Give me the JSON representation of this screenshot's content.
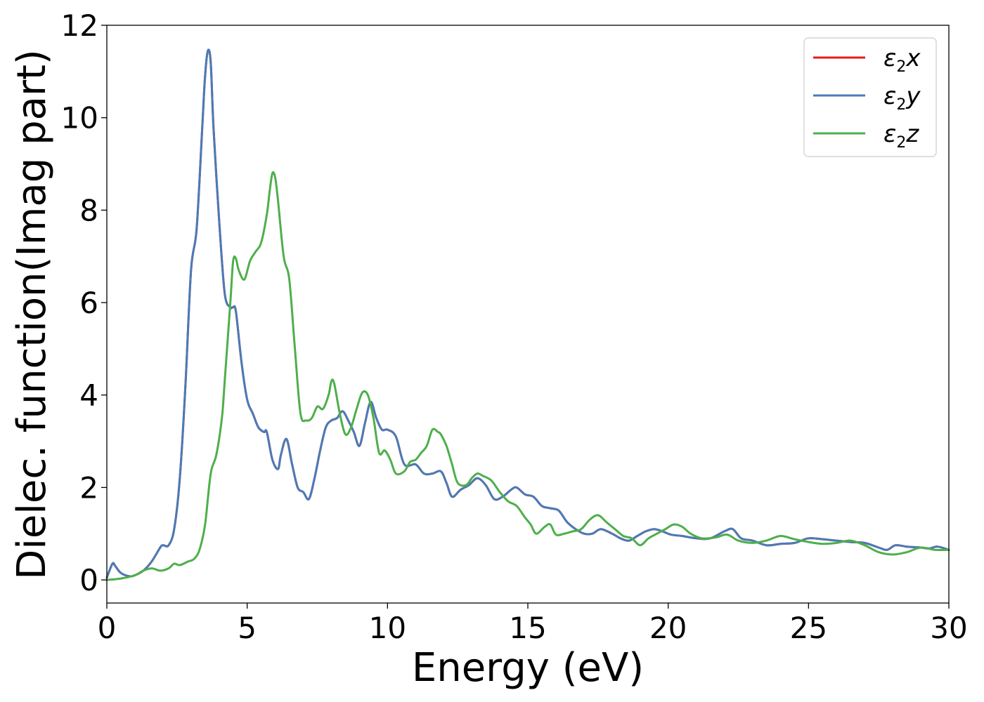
{
  "chart_data": {
    "type": "line",
    "title": "",
    "xlabel": "Energy (eV)",
    "ylabel": "Dielec. function(Imag part)",
    "xlim": [
      0,
      30
    ],
    "ylim": [
      -0.5,
      12
    ],
    "xticks": [
      0,
      5,
      10,
      15,
      20,
      25,
      30
    ],
    "yticks": [
      0,
      2,
      4,
      6,
      8,
      10,
      12
    ],
    "grid": false,
    "legend_position": "top-right",
    "series": [
      {
        "name": "ε2x",
        "legend_base": "ε",
        "legend_sub": "2",
        "legend_suffix": "x",
        "color": "#e41a1c",
        "x": [
          0,
          0.2,
          0.3,
          0.5,
          0.8,
          1.0,
          1.3,
          1.6,
          1.9,
          2.0,
          2.2,
          2.4,
          2.6,
          2.8,
          3.0,
          3.2,
          3.4,
          3.5,
          3.6,
          3.7,
          3.8,
          4.0,
          4.2,
          4.4,
          4.5,
          4.6,
          4.8,
          5.0,
          5.2,
          5.4,
          5.6,
          5.7,
          5.9,
          6.1,
          6.2,
          6.4,
          6.6,
          6.8,
          7.0,
          7.2,
          7.4,
          7.6,
          7.8,
          8.0,
          8.2,
          8.4,
          8.6,
          8.8,
          9.0,
          9.2,
          9.4,
          9.6,
          9.8,
          10.0,
          10.3,
          10.6,
          11.0,
          11.3,
          11.6,
          11.9,
          12.1,
          12.3,
          12.6,
          12.9,
          13.2,
          13.5,
          13.8,
          14.1,
          14.4,
          14.6,
          14.9,
          15.2,
          15.5,
          15.8,
          16.1,
          16.4,
          16.7,
          17.0,
          17.3,
          17.6,
          18.0,
          18.3,
          18.6,
          18.9,
          19.2,
          19.5,
          19.8,
          20.1,
          20.5,
          21.0,
          21.5,
          22.0,
          22.3,
          22.6,
          23.0,
          23.5,
          24.0,
          24.5,
          25.0,
          25.5,
          26.0,
          26.5,
          27.0,
          27.5,
          27.8,
          28.1,
          28.5,
          29.0,
          29.3,
          29.6,
          30.0
        ],
        "y": [
          0.05,
          0.35,
          0.3,
          0.15,
          0.08,
          0.1,
          0.2,
          0.4,
          0.7,
          0.75,
          0.75,
          1.1,
          2.2,
          4.2,
          6.7,
          7.6,
          9.8,
          10.9,
          11.45,
          11.2,
          9.8,
          7.8,
          6.2,
          5.9,
          5.9,
          5.8,
          4.7,
          3.9,
          3.6,
          3.3,
          3.2,
          3.2,
          2.6,
          2.4,
          2.7,
          3.05,
          2.5,
          2.0,
          1.9,
          1.75,
          2.2,
          2.8,
          3.3,
          3.45,
          3.5,
          3.65,
          3.45,
          3.2,
          2.9,
          3.4,
          3.85,
          3.5,
          3.25,
          3.25,
          3.1,
          2.5,
          2.5,
          2.3,
          2.3,
          2.35,
          2.1,
          1.8,
          1.95,
          2.05,
          2.2,
          2.05,
          1.75,
          1.8,
          1.95,
          2.0,
          1.85,
          1.8,
          1.6,
          1.55,
          1.5,
          1.25,
          1.1,
          1.0,
          1.0,
          1.1,
          1.0,
          0.9,
          0.85,
          0.95,
          1.05,
          1.1,
          1.05,
          0.98,
          0.95,
          0.9,
          0.9,
          1.05,
          1.1,
          0.9,
          0.85,
          0.75,
          0.78,
          0.8,
          0.9,
          0.88,
          0.85,
          0.82,
          0.8,
          0.7,
          0.65,
          0.75,
          0.72,
          0.7,
          0.68,
          0.72,
          0.65
        ]
      },
      {
        "name": "ε2y",
        "legend_base": "ε",
        "legend_sub": "2",
        "legend_suffix": "y",
        "color": "#4a7bb7",
        "x": [
          0,
          0.2,
          0.3,
          0.5,
          0.8,
          1.0,
          1.3,
          1.6,
          1.9,
          2.0,
          2.2,
          2.4,
          2.6,
          2.8,
          3.0,
          3.2,
          3.4,
          3.5,
          3.6,
          3.7,
          3.8,
          4.0,
          4.2,
          4.4,
          4.5,
          4.6,
          4.8,
          5.0,
          5.2,
          5.4,
          5.6,
          5.7,
          5.9,
          6.1,
          6.2,
          6.4,
          6.6,
          6.8,
          7.0,
          7.2,
          7.4,
          7.6,
          7.8,
          8.0,
          8.2,
          8.4,
          8.6,
          8.8,
          9.0,
          9.2,
          9.4,
          9.6,
          9.8,
          10.0,
          10.3,
          10.6,
          11.0,
          11.3,
          11.6,
          11.9,
          12.1,
          12.3,
          12.6,
          12.9,
          13.2,
          13.5,
          13.8,
          14.1,
          14.4,
          14.6,
          14.9,
          15.2,
          15.5,
          15.8,
          16.1,
          16.4,
          16.7,
          17.0,
          17.3,
          17.6,
          18.0,
          18.3,
          18.6,
          18.9,
          19.2,
          19.5,
          19.8,
          20.1,
          20.5,
          21.0,
          21.5,
          22.0,
          22.3,
          22.6,
          23.0,
          23.5,
          24.0,
          24.5,
          25.0,
          25.5,
          26.0,
          26.5,
          27.0,
          27.5,
          27.8,
          28.1,
          28.5,
          29.0,
          29.3,
          29.6,
          30.0
        ],
        "y": [
          0.05,
          0.35,
          0.3,
          0.15,
          0.08,
          0.1,
          0.2,
          0.4,
          0.7,
          0.75,
          0.75,
          1.1,
          2.2,
          4.2,
          6.7,
          7.6,
          9.8,
          10.9,
          11.45,
          11.2,
          9.8,
          7.8,
          6.2,
          5.9,
          5.9,
          5.8,
          4.7,
          3.9,
          3.6,
          3.3,
          3.2,
          3.2,
          2.6,
          2.4,
          2.7,
          3.05,
          2.5,
          2.0,
          1.9,
          1.75,
          2.2,
          2.8,
          3.3,
          3.45,
          3.5,
          3.65,
          3.45,
          3.2,
          2.9,
          3.4,
          3.85,
          3.5,
          3.25,
          3.25,
          3.1,
          2.5,
          2.5,
          2.3,
          2.3,
          2.35,
          2.1,
          1.8,
          1.95,
          2.05,
          2.2,
          2.05,
          1.75,
          1.8,
          1.95,
          2.0,
          1.85,
          1.8,
          1.6,
          1.55,
          1.5,
          1.25,
          1.1,
          1.0,
          1.0,
          1.1,
          1.0,
          0.9,
          0.85,
          0.95,
          1.05,
          1.1,
          1.05,
          0.98,
          0.95,
          0.9,
          0.9,
          1.05,
          1.1,
          0.9,
          0.85,
          0.75,
          0.78,
          0.8,
          0.9,
          0.88,
          0.85,
          0.82,
          0.8,
          0.7,
          0.65,
          0.75,
          0.72,
          0.7,
          0.68,
          0.72,
          0.65
        ]
      },
      {
        "name": "ε2z",
        "legend_base": "ε",
        "legend_sub": "2",
        "legend_suffix": "z",
        "color": "#4daf4a",
        "x": [
          0,
          0.5,
          1.0,
          1.3,
          1.6,
          1.9,
          2.2,
          2.4,
          2.6,
          2.9,
          3.1,
          3.3,
          3.5,
          3.7,
          3.9,
          4.1,
          4.2,
          4.4,
          4.5,
          4.6,
          4.7,
          4.9,
          5.1,
          5.3,
          5.5,
          5.7,
          5.8,
          5.9,
          6.0,
          6.1,
          6.3,
          6.5,
          6.7,
          6.9,
          7.1,
          7.3,
          7.5,
          7.7,
          7.9,
          8.0,
          8.1,
          8.3,
          8.5,
          8.7,
          8.9,
          9.1,
          9.3,
          9.5,
          9.7,
          9.9,
          10.1,
          10.3,
          10.6,
          10.8,
          11.0,
          11.2,
          11.4,
          11.6,
          11.8,
          11.9,
          12.1,
          12.3,
          12.5,
          12.8,
          13.0,
          13.2,
          13.4,
          13.7,
          14.0,
          14.3,
          14.6,
          14.9,
          15.1,
          15.3,
          15.6,
          15.8,
          16.0,
          16.3,
          16.6,
          16.9,
          17.2,
          17.5,
          17.8,
          18.1,
          18.4,
          18.7,
          19.0,
          19.3,
          19.6,
          19.9,
          20.2,
          20.5,
          20.8,
          21.2,
          21.7,
          22.1,
          22.5,
          23.0,
          23.5,
          24.0,
          24.5,
          25.0,
          25.5,
          26.0,
          26.5,
          27.0,
          27.5,
          28.0,
          28.5,
          29.0,
          29.5,
          30.0
        ],
        "y": [
          0.0,
          0.03,
          0.1,
          0.2,
          0.25,
          0.2,
          0.25,
          0.35,
          0.32,
          0.4,
          0.45,
          0.65,
          1.2,
          2.3,
          2.7,
          3.5,
          4.3,
          6.0,
          6.9,
          6.95,
          6.7,
          6.5,
          6.9,
          7.1,
          7.3,
          7.9,
          8.4,
          8.8,
          8.7,
          8.2,
          7.0,
          6.5,
          5.0,
          3.6,
          3.45,
          3.5,
          3.75,
          3.7,
          4.0,
          4.3,
          4.25,
          3.6,
          3.15,
          3.3,
          3.7,
          4.05,
          4.0,
          3.5,
          2.75,
          2.8,
          2.6,
          2.3,
          2.35,
          2.55,
          2.6,
          2.75,
          2.9,
          3.25,
          3.2,
          3.15,
          2.9,
          2.5,
          2.1,
          2.05,
          2.2,
          2.3,
          2.25,
          2.15,
          1.9,
          1.7,
          1.6,
          1.35,
          1.2,
          1.0,
          1.15,
          1.2,
          0.98,
          1.0,
          1.05,
          1.1,
          1.3,
          1.4,
          1.25,
          1.1,
          0.95,
          0.9,
          0.75,
          0.9,
          1.0,
          1.1,
          1.2,
          1.15,
          1.0,
          0.9,
          0.92,
          0.98,
          0.85,
          0.8,
          0.85,
          0.95,
          0.88,
          0.82,
          0.78,
          0.8,
          0.85,
          0.75,
          0.6,
          0.55,
          0.6,
          0.7,
          0.65,
          0.65
        ]
      }
    ]
  }
}
